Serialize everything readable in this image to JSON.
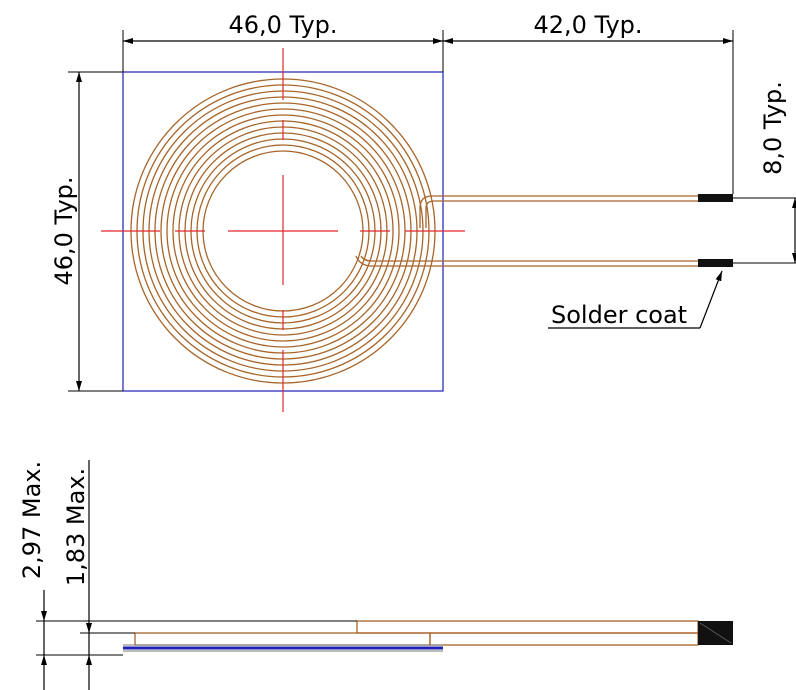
{
  "top_view": {
    "dim_width": "46,0 Typ.",
    "dim_lead_length": "42,0 Typ.",
    "dim_height": "46,0 Typ.",
    "dim_lead_span": "8,0 Typ.",
    "callout_solder": "Solder coat"
  },
  "side_view": {
    "dim_total_thickness": "2,97 Max.",
    "dim_coil_thickness": "1,83 Max."
  },
  "colors": {
    "outline": "#1f1fb4",
    "centerline": "#e0282d",
    "copper": "#a8652a",
    "solder": "#111111"
  }
}
